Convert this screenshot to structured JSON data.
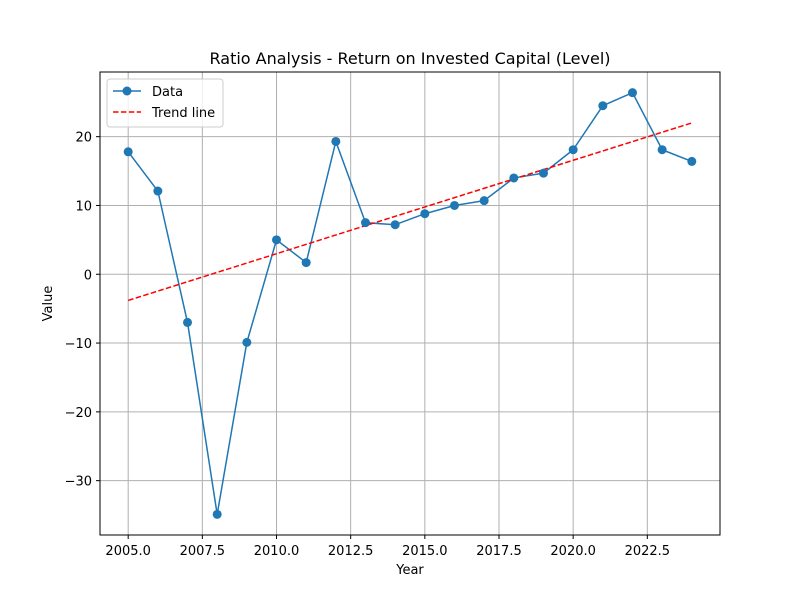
{
  "chart_data": {
    "type": "line",
    "title": "Ratio Analysis - Return on Invested Capital (Level)",
    "xlabel": "Year",
    "ylabel": "Value",
    "xlim": [
      2004.05,
      2024.95
    ],
    "ylim": [
      -37.9,
      29.4
    ],
    "x_ticks": [
      2005,
      2007.5,
      2010,
      2012.5,
      2015,
      2017.5,
      2020,
      2022.5
    ],
    "x_tick_labels": [
      "2005.0",
      "2007.5",
      "2010.0",
      "2012.5",
      "2015.0",
      "2017.5",
      "2020.0",
      "2022.5"
    ],
    "y_ticks": [
      -30,
      -20,
      -10,
      0,
      10,
      20
    ],
    "y_tick_labels": [
      "−30",
      "−20",
      "−10",
      "0",
      "10",
      "20"
    ],
    "grid": true,
    "legend_position": "upper-left",
    "series": [
      {
        "name": "Data",
        "color": "#1f77b4",
        "style": "line-marker",
        "x": [
          2005,
          2006,
          2007,
          2008,
          2009,
          2010,
          2011,
          2012,
          2013,
          2014,
          2015,
          2016,
          2017,
          2018,
          2019,
          2020,
          2021,
          2022,
          2023,
          2024
        ],
        "values": [
          17.8,
          12.1,
          -7.0,
          -34.9,
          -9.9,
          5.0,
          1.7,
          19.3,
          7.5,
          7.2,
          8.8,
          10.0,
          10.7,
          14.0,
          14.7,
          18.1,
          24.5,
          26.4,
          18.1,
          16.4
        ]
      },
      {
        "name": "Trend line",
        "color": "#ff0000",
        "style": "dashed",
        "x": [
          2005,
          2024
        ],
        "values": [
          -3.8,
          22.0
        ]
      }
    ]
  }
}
